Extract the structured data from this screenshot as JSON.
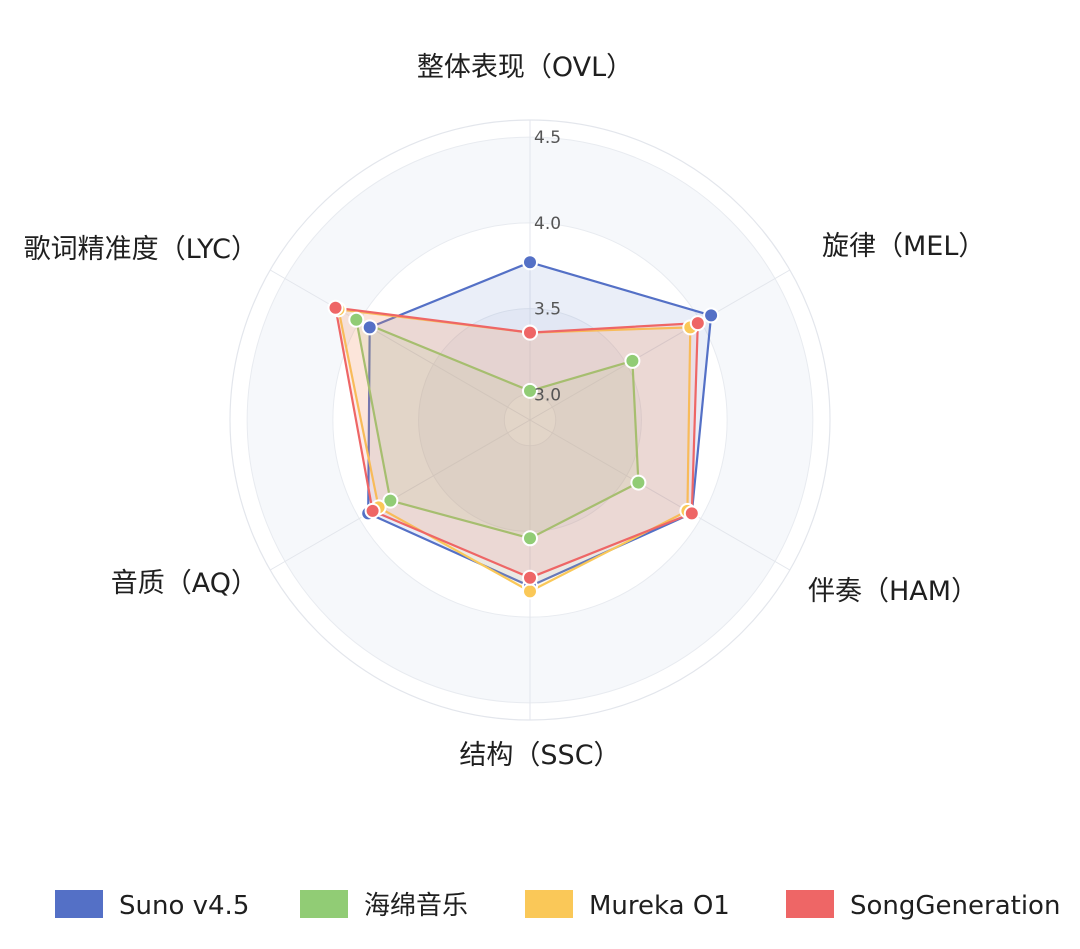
{
  "chart_data": {
    "type": "radar",
    "title": "",
    "axes": [
      "整体表现（OVL）",
      "旋律（MEL）",
      "伴奏（HAM）",
      "结构（SSC）",
      "音质（AQ）",
      "歌词精准度（LYC）"
    ],
    "r_ticks": [
      "3.0",
      "3.5",
      "4.0",
      "4.5"
    ],
    "r_range": [
      2.85,
      4.6
    ],
    "grid": true,
    "legend_position": "bottom",
    "series": [
      {
        "name": "Suno v4.5",
        "color": "#5470c6",
        "values": [
          3.77,
          4.07,
          3.94,
          3.82,
          3.94,
          3.93
        ]
      },
      {
        "name": "海绵音乐",
        "color": "#91cc75",
        "values": [
          3.02,
          3.54,
          3.58,
          3.54,
          3.79,
          4.02
        ]
      },
      {
        "name": "Mureka O1",
        "color": "#fac858",
        "values": [
          3.36,
          3.93,
          3.91,
          3.85,
          3.87,
          4.14
        ]
      },
      {
        "name": "SongGeneration",
        "color": "#ee6666",
        "values": [
          3.36,
          3.98,
          3.94,
          3.77,
          3.91,
          4.16
        ]
      }
    ]
  }
}
